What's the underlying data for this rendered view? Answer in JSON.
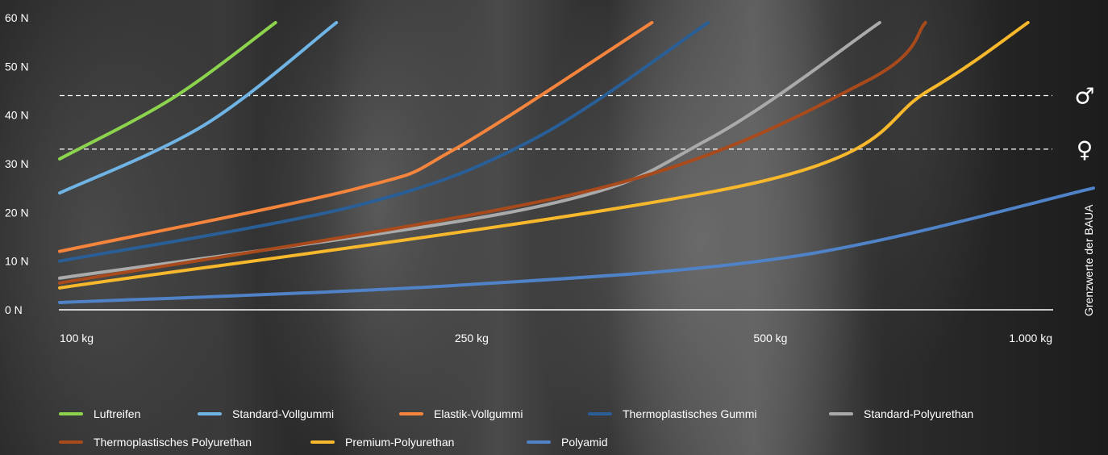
{
  "chart_data": {
    "type": "line",
    "x_axis": {
      "scale": "log",
      "ticks": [
        100,
        250,
        500,
        1000
      ],
      "tick_labels": [
        "100 kg",
        "250 kg",
        "500 kg",
        "1.000 kg"
      ]
    },
    "y_axis": {
      "ylim": [
        0,
        60
      ],
      "ticks": [
        0,
        10,
        20,
        30,
        40,
        50,
        60
      ],
      "tick_labels": [
        "0 N",
        "10 N",
        "20 N",
        "30 N",
        "40 N",
        "50 N",
        "60 N"
      ]
    },
    "reference_lines": [
      {
        "value": 44,
        "symbol": "♂",
        "style": "dashed"
      },
      {
        "value": 33,
        "symbol": "♀",
        "style": "dashed"
      }
    ],
    "side_label": "Grenzwerte der BAUA",
    "grid": false,
    "legend_position": "bottom",
    "series": [
      {
        "name": "Luftreifen",
        "color": "#8cd44e",
        "x": [
          100,
          130,
          165
        ],
        "y": [
          31,
          43.5,
          59
        ]
      },
      {
        "name": "Standard-Vollgummi",
        "color": "#6fb4e4",
        "x": [
          100,
          140,
          190
        ],
        "y": [
          24,
          38,
          59
        ]
      },
      {
        "name": "Elastik-Vollgummi",
        "color": "#f5843c",
        "x": [
          100,
          200,
          250,
          395
        ],
        "y": [
          12,
          25,
          33,
          59
        ]
      },
      {
        "name": "Thermoplastisches Gummi",
        "color": "#295f96",
        "x": [
          100,
          200,
          300,
          450
        ],
        "y": [
          10,
          21.5,
          35,
          59
        ]
      },
      {
        "name": "Standard-Polyurethan",
        "color": "#aaaaaa",
        "x": [
          100,
          300,
          450,
          670
        ],
        "y": [
          6.5,
          21,
          35,
          59
        ]
      },
      {
        "name": "Thermoplastisches Polyurethan",
        "color": "#a84a1c",
        "x": [
          100,
          350,
          650,
          745
        ],
        "y": [
          5.5,
          25,
          47,
          59
        ]
      },
      {
        "name": "Premium-Polyurethan",
        "color": "#f8b82c",
        "x": [
          100,
          500,
          750,
          945
        ],
        "y": [
          4.5,
          26,
          45,
          59
        ]
      },
      {
        "name": "Polyamid",
        "color": "#4f82c6",
        "x": [
          100,
          250,
          550,
          1100
        ],
        "y": [
          1.5,
          5,
          11,
          25
        ]
      }
    ]
  }
}
